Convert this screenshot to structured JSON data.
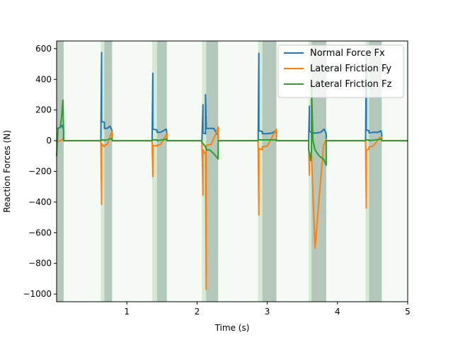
{
  "chart_data": {
    "type": "line",
    "title": "",
    "xlabel": "Time (s)",
    "ylabel": "Reaction Forces (N)",
    "xlim": [
      0,
      5
    ],
    "ylim": [
      -1050,
      650
    ],
    "xticks": [
      1,
      2,
      3,
      4,
      5
    ],
    "xtick_labels": [
      "1",
      "2",
      "3",
      "4",
      "5"
    ],
    "yticks": [
      600,
      400,
      200,
      0,
      -200,
      -400,
      -600,
      -800,
      -1000
    ],
    "ytick_labels": [
      "600",
      "400",
      "200",
      "0",
      "−200",
      "−400",
      "−600",
      "−800",
      "−1000"
    ],
    "grid": false,
    "legend_position": "top-right",
    "background_color": "#f5fbf4",
    "stance_shading": {
      "dark_color": "#b4c7bb",
      "light_color": "#d4ead3",
      "dark_intervals": [
        [
          0.0,
          0.1
        ],
        [
          0.68,
          0.79
        ],
        [
          1.43,
          1.57
        ],
        [
          2.13,
          2.3
        ],
        [
          2.93,
          3.13
        ],
        [
          3.63,
          3.84
        ],
        [
          4.45,
          4.63
        ]
      ],
      "light_intervals": [
        [
          0.63,
          0.68
        ],
        [
          1.36,
          1.43
        ],
        [
          2.07,
          2.13
        ],
        [
          2.87,
          2.93
        ],
        [
          3.59,
          3.63
        ],
        [
          4.4,
          4.45
        ]
      ]
    },
    "series": [
      {
        "name": "Normal Force Fx",
        "color": "#1f77b4",
        "x": [
          0,
          0.05,
          0.08,
          0.1,
          0.1,
          0.63,
          0.63,
          0.64,
          0.64,
          0.68,
          0.68,
          0.72,
          0.76,
          0.79,
          0.79,
          1.36,
          1.36,
          1.37,
          1.37,
          1.43,
          1.43,
          1.48,
          1.54,
          1.56,
          1.57,
          1.57,
          2.07,
          2.07,
          2.085,
          2.085,
          2.12,
          2.12,
          2.13,
          2.13,
          2.18,
          2.24,
          2.27,
          2.3,
          2.3,
          2.87,
          2.87,
          2.88,
          2.88,
          2.93,
          2.93,
          2.99,
          3.07,
          3.12,
          3.13,
          3.13,
          3.59,
          3.59,
          3.6,
          3.6,
          3.63,
          3.63,
          3.69,
          3.76,
          3.81,
          3.84,
          3.84,
          4.4,
          4.4,
          4.41,
          4.41,
          4.45,
          4.45,
          4.5,
          4.58,
          4.62,
          4.63,
          4.63,
          5.0
        ],
        "y": [
          80,
          85,
          100,
          70,
          0,
          0,
          0,
          575,
          125,
          120,
          80,
          80,
          95,
          65,
          0,
          0,
          0,
          440,
          75,
          70,
          55,
          55,
          70,
          75,
          55,
          0,
          0,
          0,
          235,
          50,
          45,
          300,
          110,
          80,
          80,
          80,
          55,
          35,
          0,
          0,
          0,
          570,
          65,
          60,
          45,
          45,
          50,
          65,
          45,
          0,
          0,
          0,
          225,
          60,
          55,
          50,
          50,
          55,
          75,
          45,
          0,
          0,
          0,
          540,
          70,
          65,
          50,
          55,
          55,
          65,
          45,
          0,
          0
        ]
      },
      {
        "name": "Lateral Friction Fy",
        "color": "#ff7f0e",
        "x": [
          0,
          0.05,
          0.09,
          0.1,
          0.1,
          0.63,
          0.63,
          0.64,
          0.64,
          0.68,
          0.68,
          0.72,
          0.77,
          0.79,
          0.79,
          1.36,
          1.36,
          1.37,
          1.37,
          1.43,
          1.43,
          1.48,
          1.55,
          1.57,
          1.57,
          2.07,
          2.07,
          2.085,
          2.085,
          2.12,
          2.12,
          2.13,
          2.13,
          2.2,
          2.28,
          2.3,
          2.3,
          2.87,
          2.87,
          2.88,
          2.88,
          2.93,
          2.93,
          3.0,
          3.1,
          3.13,
          3.13,
          3.59,
          3.59,
          3.6,
          3.6,
          3.63,
          3.63,
          3.68,
          3.8,
          3.84,
          3.84,
          4.4,
          4.4,
          4.41,
          4.41,
          4.45,
          4.45,
          4.51,
          4.6,
          4.63,
          4.63,
          5.0
        ],
        "y": [
          -10,
          0,
          10,
          0,
          0,
          0,
          -10,
          -415,
          -20,
          -40,
          -30,
          -25,
          40,
          60,
          0,
          0,
          -10,
          -235,
          -30,
          -35,
          -30,
          -25,
          30,
          50,
          0,
          0,
          -20,
          -355,
          -60,
          -90,
          -90,
          -970,
          -30,
          -25,
          60,
          90,
          0,
          0,
          -20,
          -485,
          -50,
          -60,
          -40,
          -35,
          50,
          75,
          0,
          0,
          -30,
          -225,
          -80,
          -95,
          -95,
          -700,
          -35,
          10,
          0,
          0,
          -20,
          -440,
          -60,
          -55,
          -40,
          -35,
          20,
          25,
          0,
          0
        ]
      },
      {
        "name": "Lateral Friction Fz",
        "color": "#2ca02c",
        "x": [
          0,
          0.02,
          0.05,
          0.07,
          0.09,
          0.1,
          0.1,
          0.63,
          0.63,
          0.68,
          0.68,
          0.79,
          0.79,
          1.36,
          1.36,
          1.43,
          1.43,
          1.57,
          1.57,
          2.07,
          2.07,
          2.085,
          2.12,
          2.13,
          2.13,
          2.18,
          2.25,
          2.3,
          2.3,
          2.87,
          2.87,
          3.13,
          3.13,
          3.59,
          3.59,
          3.6,
          3.62,
          3.63,
          3.63,
          3.65,
          3.68,
          3.74,
          3.8,
          3.84,
          3.84,
          4.4,
          4.4,
          4.45,
          4.45,
          4.63,
          4.63,
          5.0
        ],
        "y": [
          -100,
          80,
          85,
          150,
          265,
          50,
          0,
          0,
          5,
          5,
          0,
          15,
          0,
          0,
          5,
          5,
          0,
          10,
          0,
          0,
          -10,
          -20,
          -40,
          -55,
          -60,
          -60,
          -90,
          -120,
          0,
          0,
          5,
          5,
          0,
          0,
          -60,
          -80,
          -130,
          -60,
          370,
          0,
          -60,
          -100,
          -120,
          -160,
          0,
          0,
          5,
          5,
          0,
          10,
          0,
          0
        ]
      }
    ]
  }
}
